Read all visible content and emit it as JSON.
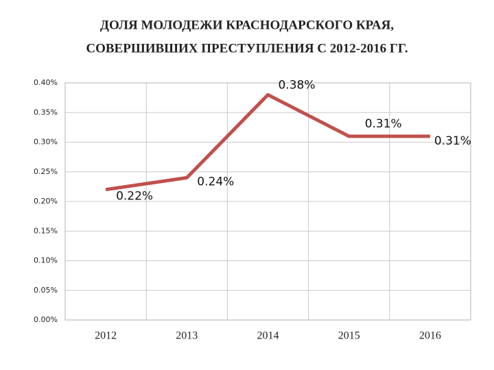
{
  "chart_data": {
    "type": "line",
    "title": [
      "ДОЛЯ МОЛОДЕЖИ КРАСНОДАРСКОГО КРАЯ,",
      "СОВЕРШИВШИХ ПРЕСТУПЛЕНИЯ С 2012-2016 ГГ."
    ],
    "categories": [
      "2012",
      "2013",
      "2014",
      "2015",
      "2016"
    ],
    "series": [
      {
        "color": "#c0504d",
        "values": [
          0.22,
          0.24,
          0.38,
          0.31,
          0.31
        ],
        "value_labels": [
          "0.22%",
          "0.24%",
          "0.38%",
          "0.31%",
          "0.31%"
        ]
      }
    ],
    "ylim": [
      0,
      0.4
    ],
    "yticks": [
      {
        "value": 0,
        "label": "0.00%"
      },
      {
        "value": 0.05,
        "label": "0.05%"
      },
      {
        "value": 0.1,
        "label": "0.10%"
      },
      {
        "value": 0.15,
        "label": "0.15%"
      },
      {
        "value": 0.2,
        "label": "0.20%"
      },
      {
        "value": 0.25,
        "label": "0.25%"
      },
      {
        "value": 0.3,
        "label": "0.30%"
      },
      {
        "value": 0.35,
        "label": "0.35%"
      },
      {
        "value": 0.4,
        "label": "0.40%"
      }
    ],
    "grid": true
  }
}
